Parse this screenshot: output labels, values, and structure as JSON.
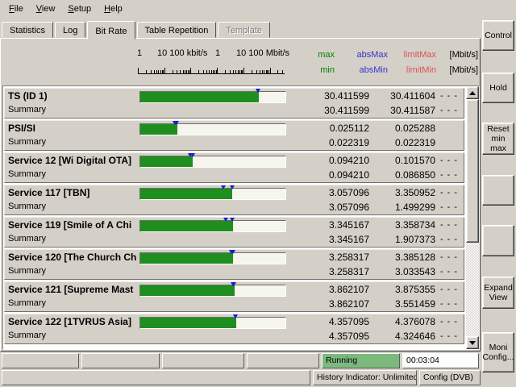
{
  "menu": {
    "items": [
      "File",
      "View",
      "Setup",
      "Help"
    ]
  },
  "tabs": [
    {
      "label": "Statistics",
      "state": "normal"
    },
    {
      "label": "Log",
      "state": "normal"
    },
    {
      "label": "Bit Rate",
      "state": "active"
    },
    {
      "label": "Table Repetition",
      "state": "normal"
    },
    {
      "label": "Template",
      "state": "disabled"
    }
  ],
  "header": {
    "scale_labels": [
      "1",
      "10 100 kbit/s",
      "1",
      "10 100 Mbit/s"
    ],
    "row1": {
      "max": "max",
      "absmax": "absMax",
      "limitmax": "limitMax",
      "unit": "[Mbit/s]"
    },
    "row2": {
      "min": "min",
      "absmin": "absMin",
      "limitmin": "limitMin",
      "unit": "[Mbit/s]"
    }
  },
  "colors": {
    "face": "#d4d0c8",
    "minmax_green": "#008000",
    "abs_blue": "#3333cc",
    "limit_red": "#dd5050",
    "bar_green": "#1e8f1e",
    "marker_blue": "#1a1ad0",
    "running_green": "#7cb97c"
  },
  "rows": [
    {
      "name": "TS (ID  1)",
      "sub": "Summary",
      "max": "30.411599",
      "absmax": "30.411604",
      "limitmax": "- - -",
      "min": "30.411599",
      "absmin": "30.411587",
      "limitmin": "- - -"
    },
    {
      "name": "PSI/SI",
      "sub": "Summary",
      "max": "0.025112",
      "absmax": "0.025288",
      "limitmax": "",
      "min": "0.022319",
      "absmin": "0.022319",
      "limitmin": ""
    },
    {
      "name": "Service  12 [Wi Digital OTA]",
      "sub": "Summary",
      "max": "0.094210",
      "absmax": "0.101570",
      "limitmax": "- - -",
      "min": "0.094210",
      "absmin": "0.086850",
      "limitmin": "- - -"
    },
    {
      "name": "Service  117 [TBN]",
      "sub": "Summary",
      "max": "3.057096",
      "absmax": "3.350952",
      "limitmax": "- - -",
      "min": "3.057096",
      "absmin": "1.499299",
      "limitmin": "- - -"
    },
    {
      "name": "Service  119 [Smile of A Chi",
      "sub": "Summary",
      "max": "3.345167",
      "absmax": "3.358734",
      "limitmax": "- - -",
      "min": "3.345167",
      "absmin": "1.907373",
      "limitmin": "- - -"
    },
    {
      "name": "Service  120 [The Church Ch",
      "sub": "Summary",
      "max": "3.258317",
      "absmax": "3.385128",
      "limitmax": "- - -",
      "min": "3.258317",
      "absmin": "3.033543",
      "limitmin": "- - -"
    },
    {
      "name": "Service  121 [Supreme Mast",
      "sub": "Summary",
      "max": "3.862107",
      "absmax": "3.875355",
      "limitmax": "- - -",
      "min": "3.862107",
      "absmin": "3.551459",
      "limitmin": "- - -"
    },
    {
      "name": "Service  122 [1TVRUS Asia]",
      "sub": "Summary",
      "max": "4.357095",
      "absmax": "4.376078",
      "limitmax": "- - -",
      "min": "4.357095",
      "absmin": "4.324646",
      "limitmin": "- - -"
    }
  ],
  "softkeys": [
    {
      "name": "control-button",
      "label": "Control"
    },
    {
      "name": "hold-button",
      "label": "Hold"
    },
    {
      "name": "reset-min-max-button",
      "label": "Reset\nmin max"
    },
    {
      "name": "softkey-blank-1",
      "label": ""
    },
    {
      "name": "softkey-blank-2",
      "label": ""
    },
    {
      "name": "expand-view-button",
      "label": "Expand\nView"
    },
    {
      "name": "moni-config-button",
      "label": "Moni\nConfig..."
    }
  ],
  "status": {
    "running": "Running",
    "elapsed": "00:03:04",
    "history": "History Indicator: Unlimited",
    "config": "Config (DVB)"
  }
}
